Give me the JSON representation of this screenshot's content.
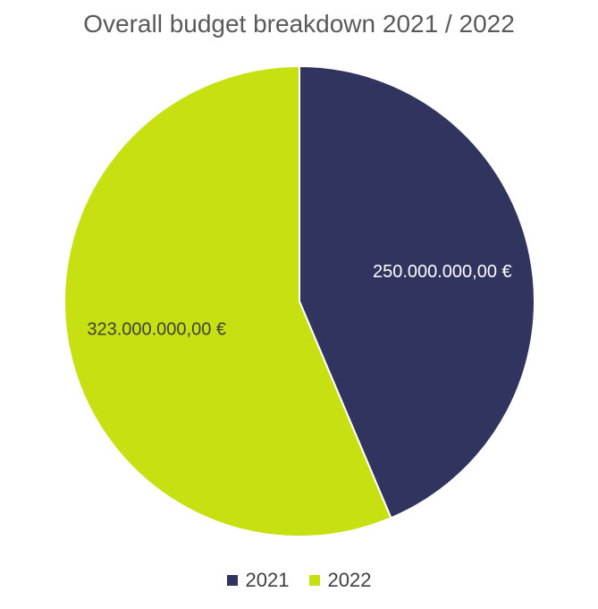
{
  "chart_data": {
    "type": "pie",
    "title": "Overall budget breakdown 2021 / 2022",
    "categories": [
      "2021",
      "2022"
    ],
    "values": [
      250000000,
      323000000
    ],
    "data_labels": [
      "250.000.000,00 €",
      "323.000.000,00 €"
    ],
    "colors": [
      "#31345F",
      "#C7E012"
    ],
    "label_colors": [
      "#FFFFFF",
      "#404040"
    ],
    "legend_position": "bottom",
    "start_angle_deg": 0,
    "direction": "clockwise"
  }
}
